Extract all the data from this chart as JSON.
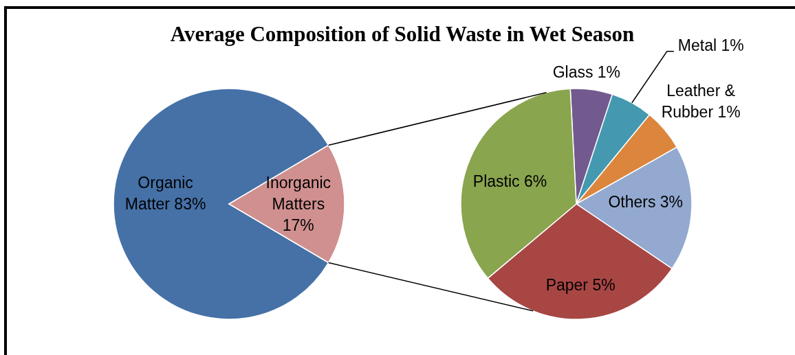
{
  "chart_data": [
    {
      "type": "pie",
      "title": "Average Composition of Solid Waste in Wet Season",
      "categories": [
        "Organic Matter",
        "Inorganic Matters"
      ],
      "values": [
        83,
        17
      ],
      "value_labels": [
        "83%",
        "17%"
      ],
      "colors": [
        "#4571a7",
        "#d0908f"
      ]
    },
    {
      "type": "pie",
      "categories": [
        "Glass",
        "Metal",
        "Leather & Rubber",
        "Others",
        "Paper",
        "Plastic"
      ],
      "values": [
        1,
        1,
        1,
        3,
        5,
        6
      ],
      "value_labels": [
        "1%",
        "1%",
        "1%",
        "3%",
        "5%",
        "6%"
      ],
      "colors": [
        "#725a8f",
        "#4499b0",
        "#dc853d",
        "#93a9cf",
        "#a84644",
        "#89a54e"
      ]
    }
  ]
}
